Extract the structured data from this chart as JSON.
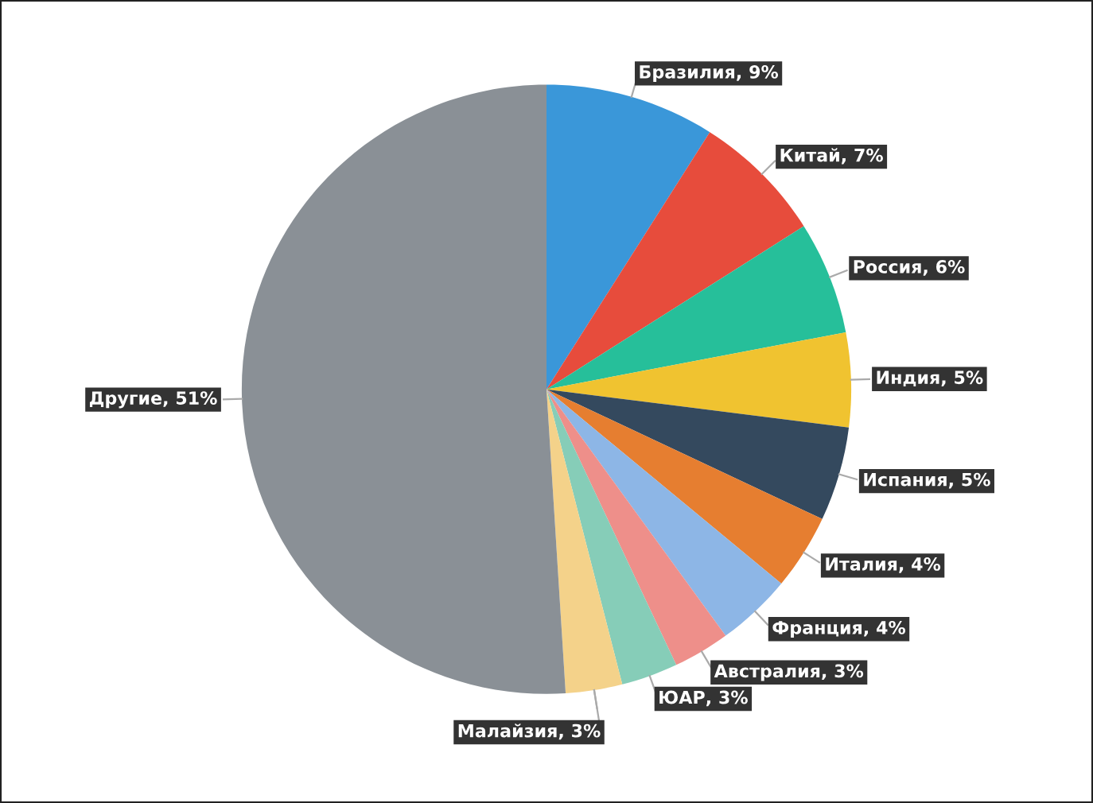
{
  "chart_data": {
    "type": "pie",
    "categories": [
      "Бразилия",
      "Китай",
      "Россия",
      "Индия",
      "Испания",
      "Италия",
      "Франция",
      "Австралия",
      "ЮАР",
      "Малайзия",
      "Другие"
    ],
    "values": [
      9,
      7,
      6,
      5,
      5,
      4,
      4,
      3,
      3,
      3,
      51
    ],
    "value_labels": [
      "9%",
      "7%",
      "6%",
      "5%",
      "5%",
      "4%",
      "4%",
      "3%",
      "3%",
      "3%",
      "51%"
    ],
    "colors": [
      "#3a97d9",
      "#e74c3c",
      "#26bf9a",
      "#f0c330",
      "#34495e",
      "#e67e30",
      "#8db6e6",
      "#ee8f8a",
      "#86cdb8",
      "#f4d28a",
      "#8a9096"
    ]
  }
}
